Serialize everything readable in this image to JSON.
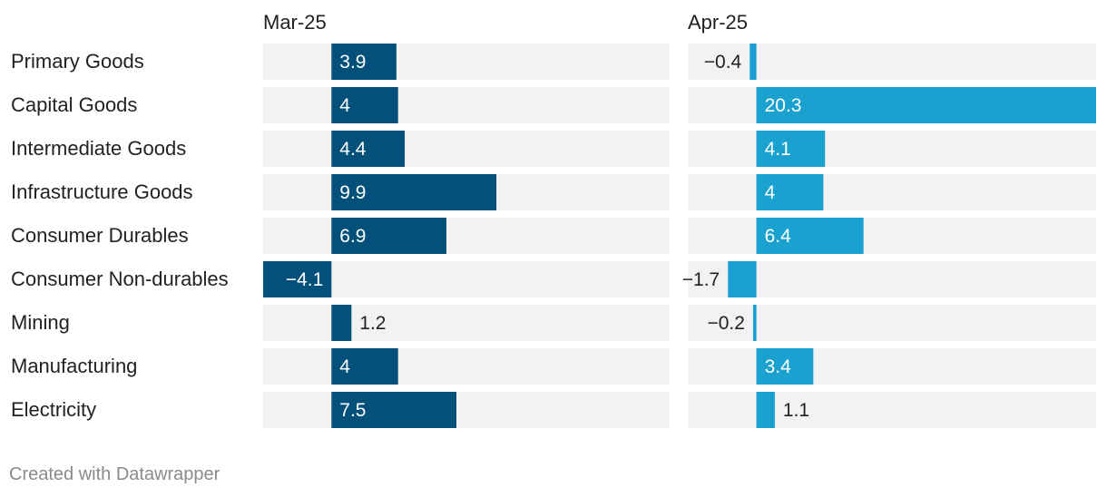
{
  "chart_data": {
    "type": "bar",
    "orientation": "horizontal",
    "categories": [
      "Primary Goods",
      "Capital Goods",
      "Intermediate Goods",
      "Infrastructure Goods",
      "Consumer Durables",
      "Consumer Non-durables",
      "Mining",
      "Manufacturing",
      "Electricity"
    ],
    "series": [
      {
        "name": "Mar-25",
        "color": "#03507b",
        "values": [
          3.9,
          4,
          4.4,
          9.9,
          6.9,
          -4.1,
          1.2,
          4,
          7.5
        ]
      },
      {
        "name": "Apr-25",
        "color": "#1aa1d0",
        "values": [
          -0.4,
          20.3,
          4.1,
          4,
          6.4,
          -1.7,
          -0.2,
          3.4,
          1.1
        ]
      }
    ],
    "value_labels": {
      "Mar-25": [
        "3.9",
        "4",
        "4.4",
        "9.9",
        "6.9",
        "−4.1",
        "1.2",
        "4",
        "7.5"
      ],
      "Apr-25": [
        "−0.4",
        "20.3",
        "4.1",
        "4",
        "6.4",
        "−1.7",
        "−0.2",
        "3.4",
        "1.1"
      ]
    },
    "xlim": [
      -4.1,
      20.3
    ],
    "background_track_color": "#f2f2f2",
    "grid": false,
    "legend": "panel-titles"
  },
  "footer": {
    "credit": "Created with Datawrapper"
  }
}
